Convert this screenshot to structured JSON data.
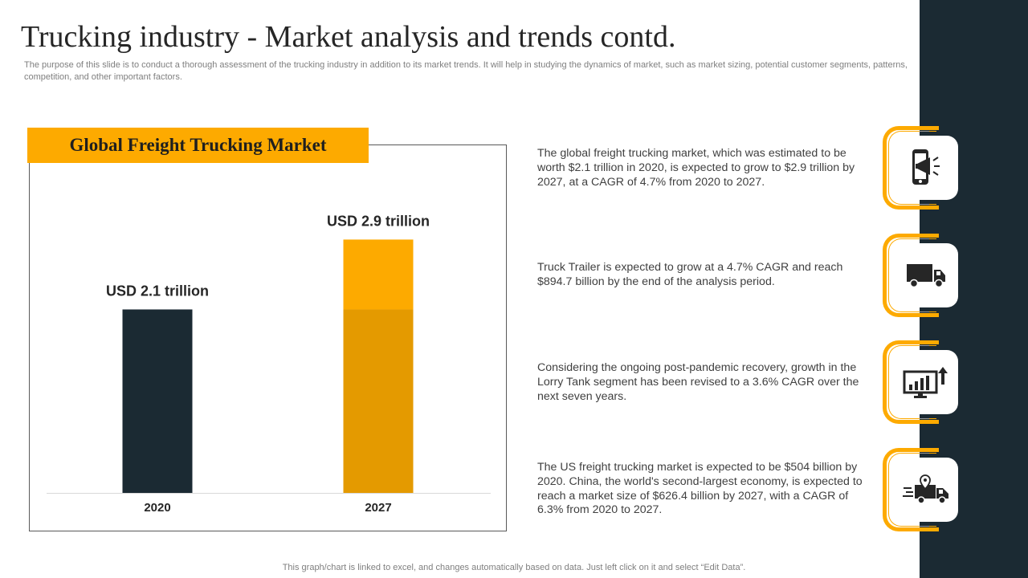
{
  "slide": {
    "title": "Trucking industry - Market analysis and trends contd.",
    "subtitle": "The purpose of this slide is to conduct a thorough assessment of the trucking industry in addition to its market trends. It will help in studying the dynamics of market, such as market sizing, potential customer segments, patterns, competition, and other important factors.",
    "footer": "This graph/chart is linked to excel,  and changes automatically based on data. Just left click on it and select “Edit Data”."
  },
  "colors": {
    "accent": "#fdaa00",
    "accent_dark": "#e49a00",
    "navy": "#1b2a33"
  },
  "chart_data": {
    "type": "bar",
    "title": "Global Freight Trucking Market",
    "categories": [
      "2020",
      "2027"
    ],
    "values": [
      2.1,
      2.9
    ],
    "data_labels": [
      "USD 2.1 trillion",
      "USD 2.9 trillion"
    ],
    "highlight_split": 2.1,
    "xlabel": "",
    "ylabel": "",
    "ylim": [
      0,
      3.4
    ],
    "grid": false,
    "legend": "none"
  },
  "insights": [
    {
      "icon": "phone-megaphone-icon",
      "text": "The global freight trucking market, which was estimated to be worth $2.1 trillion in 2020, is expected to grow to $2.9 trillion by 2027, at a CAGR of 4.7% from 2020 to 2027."
    },
    {
      "icon": "truck-icon",
      "text": "Truck Trailer is expected to grow at a 4.7% CAGR and reach $894.7 billion by the end of the analysis period."
    },
    {
      "icon": "growth-chart-icon",
      "text": "Considering the ongoing post-pandemic recovery, growth in the Lorry Tank segment has been revised to a 3.6% CAGR over the next seven years."
    },
    {
      "icon": "delivery-truck-icon",
      "text": "The US freight trucking market is expected to be $504 billion by 2020. China, the world's second-largest economy, is expected to reach a market size of $626.4 billion by 2027, with a CAGR of 6.3% from 2020 to 2027."
    }
  ]
}
